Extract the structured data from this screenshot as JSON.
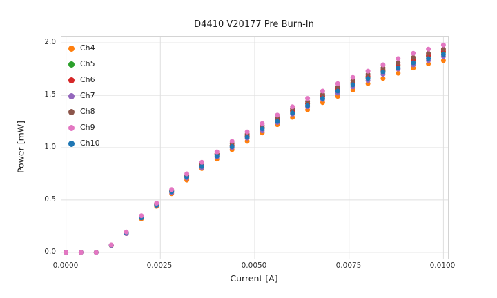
{
  "chart_data": {
    "type": "scatter",
    "title": "D4410 V20177 Pre Burn-In",
    "xlabel": "Current [A]",
    "ylabel": "Power [mW]",
    "xlim": [
      -0.00012,
      0.01012
    ],
    "ylim": [
      -0.06,
      2.06
    ],
    "grid": true,
    "legend_position": "upper left",
    "xticks": [
      0.0,
      0.0025,
      0.005,
      0.0075,
      0.01
    ],
    "xtick_labels": [
      "0.0000",
      "0.0025",
      "0.0050",
      "0.0075",
      "0.0100"
    ],
    "yticks": [
      0.0,
      0.5,
      1.0,
      1.5,
      2.0
    ],
    "ytick_labels": [
      "0.0",
      "0.5",
      "1.0",
      "1.5",
      "2.0"
    ],
    "x": [
      0.0,
      0.0004,
      0.0008,
      0.0012,
      0.0016,
      0.002,
      0.0024,
      0.0028,
      0.0032,
      0.0036,
      0.004,
      0.0044,
      0.0048,
      0.0052,
      0.0056,
      0.006,
      0.0064,
      0.0068,
      0.0072,
      0.0076,
      0.008,
      0.0084,
      0.0088,
      0.0092,
      0.0096,
      0.01
    ],
    "draw_order": [
      0,
      1,
      2,
      3,
      4,
      6,
      5
    ],
    "series": [
      {
        "name": "Ch4",
        "color": "#ff7f0e",
        "values": [
          0,
          0,
          0,
          0.066,
          0.18,
          0.32,
          0.44,
          0.56,
          0.69,
          0.8,
          0.89,
          0.98,
          1.06,
          1.14,
          1.22,
          1.29,
          1.36,
          1.43,
          1.49,
          1.55,
          1.61,
          1.66,
          1.71,
          1.76,
          1.8,
          1.83
        ]
      },
      {
        "name": "Ch5",
        "color": "#2ca02c",
        "values": [
          0,
          0,
          0,
          0.069,
          0.19,
          0.34,
          0.46,
          0.58,
          0.72,
          0.83,
          0.93,
          1.02,
          1.11,
          1.19,
          1.27,
          1.35,
          1.42,
          1.49,
          1.55,
          1.61,
          1.67,
          1.73,
          1.78,
          1.83,
          1.87,
          1.91
        ]
      },
      {
        "name": "Ch6",
        "color": "#d62728",
        "values": [
          0,
          0,
          0,
          0.07,
          0.19,
          0.34,
          0.46,
          0.59,
          0.73,
          0.84,
          0.94,
          1.02,
          1.11,
          1.19,
          1.27,
          1.35,
          1.42,
          1.49,
          1.56,
          1.62,
          1.68,
          1.74,
          1.79,
          1.84,
          1.88,
          1.92
        ]
      },
      {
        "name": "Ch7",
        "color": "#9467bd",
        "values": [
          0,
          0,
          0,
          0.068,
          0.18,
          0.33,
          0.45,
          0.57,
          0.71,
          0.81,
          0.91,
          1.0,
          1.09,
          1.16,
          1.24,
          1.32,
          1.39,
          1.46,
          1.52,
          1.58,
          1.64,
          1.7,
          1.75,
          1.79,
          1.83,
          1.87
        ]
      },
      {
        "name": "Ch8",
        "color": "#8c564b",
        "values": [
          0,
          0,
          0,
          0.07,
          0.19,
          0.34,
          0.46,
          0.59,
          0.73,
          0.84,
          0.94,
          1.04,
          1.13,
          1.21,
          1.29,
          1.37,
          1.44,
          1.51,
          1.58,
          1.64,
          1.7,
          1.76,
          1.81,
          1.86,
          1.9,
          1.94
        ]
      },
      {
        "name": "Ch9",
        "color": "#e377c2",
        "values": [
          0,
          0,
          0,
          0.072,
          0.195,
          0.35,
          0.47,
          0.6,
          0.75,
          0.86,
          0.96,
          1.06,
          1.15,
          1.23,
          1.31,
          1.39,
          1.47,
          1.54,
          1.61,
          1.67,
          1.73,
          1.79,
          1.85,
          1.9,
          1.94,
          1.98
        ]
      },
      {
        "name": "Ch10",
        "color": "#1f77b4",
        "values": [
          0,
          0,
          0,
          0.069,
          0.186,
          0.33,
          0.45,
          0.58,
          0.72,
          0.82,
          0.92,
          1.01,
          1.1,
          1.18,
          1.25,
          1.33,
          1.4,
          1.47,
          1.54,
          1.6,
          1.66,
          1.72,
          1.76,
          1.81,
          1.85,
          1.89
        ]
      }
    ]
  }
}
